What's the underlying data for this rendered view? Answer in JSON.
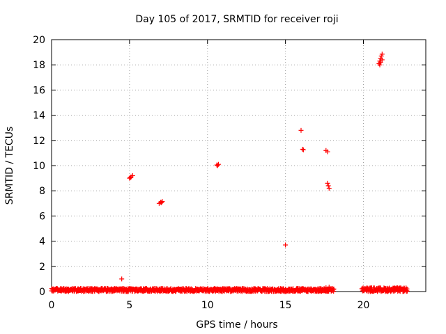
{
  "chart_data": {
    "type": "scatter",
    "title": "Day 105 of 2017, SRMTID for receiver roji",
    "xlabel": "GPS time / hours",
    "ylabel": "SRMTID / TECUs",
    "xlim": [
      0,
      24
    ],
    "ylim": [
      0,
      20
    ],
    "xticks": [
      0,
      5,
      10,
      15,
      20
    ],
    "yticks": [
      0,
      2,
      4,
      6,
      8,
      10,
      12,
      14,
      16,
      18,
      20
    ],
    "grid": true,
    "marker": "+",
    "color": "#ff0000",
    "series": [
      {
        "name": "SRMTID",
        "baseline_segments": [
          {
            "x_start": 0.0,
            "x_end": 18.1,
            "y_min": 0.0,
            "y_max": 0.25
          },
          {
            "x_start": 19.9,
            "x_end": 22.8,
            "y_min": 0.0,
            "y_max": 0.3
          }
        ],
        "points": [
          [
            4.5,
            1.0
          ],
          [
            5.0,
            9.0
          ],
          [
            5.1,
            9.1
          ],
          [
            5.2,
            9.2
          ],
          [
            5.05,
            9.05
          ],
          [
            6.9,
            7.0
          ],
          [
            7.0,
            7.1
          ],
          [
            7.1,
            7.15
          ],
          [
            7.05,
            7.05
          ],
          [
            10.6,
            10.05
          ],
          [
            10.7,
            10.1
          ],
          [
            10.65,
            10.0
          ],
          [
            15.0,
            3.7
          ],
          [
            16.0,
            12.8
          ],
          [
            16.1,
            11.3
          ],
          [
            16.15,
            11.25
          ],
          [
            17.6,
            11.2
          ],
          [
            17.7,
            11.1
          ],
          [
            17.7,
            8.6
          ],
          [
            17.75,
            8.4
          ],
          [
            17.8,
            8.2
          ],
          [
            17.6,
            0.3
          ],
          [
            17.8,
            0.35
          ],
          [
            18.0,
            0.25
          ],
          [
            21.0,
            18.1
          ],
          [
            21.05,
            18.3
          ],
          [
            21.1,
            18.5
          ],
          [
            21.15,
            18.7
          ],
          [
            21.2,
            18.85
          ],
          [
            21.1,
            18.2
          ],
          [
            21.2,
            18.4
          ],
          [
            21.05,
            18.0
          ]
        ]
      }
    ]
  }
}
